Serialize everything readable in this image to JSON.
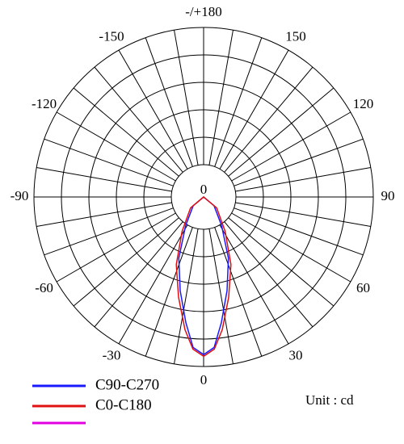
{
  "chart_data": {
    "type": "polar",
    "unit_label": "Unit : cd",
    "rlim": [
      0,
      100
    ],
    "rticks": [
      0
    ],
    "thetaticks": [
      {
        "value": 180,
        "label": "-/+180"
      },
      150,
      120,
      90,
      60,
      30,
      0,
      -30,
      -60,
      -90,
      -120,
      -150
    ],
    "theta": [
      -90,
      -50,
      -32,
      -22,
      -14,
      -8,
      -4,
      0,
      4,
      8,
      14,
      22,
      32,
      50,
      90
    ],
    "series": [
      {
        "name": "C90-C270",
        "color": "#1a1aff",
        "values": [
          0,
          8,
          20,
          39,
          57,
          75,
          89,
          93,
          89,
          75,
          57,
          39,
          20,
          8,
          0
        ]
      },
      {
        "name": "C0-C180",
        "color": "#e01010",
        "values": [
          0,
          10,
          24,
          43,
          61,
          79,
          90,
          94,
          90,
          79,
          61,
          43,
          24,
          10,
          0
        ]
      }
    ]
  }
}
